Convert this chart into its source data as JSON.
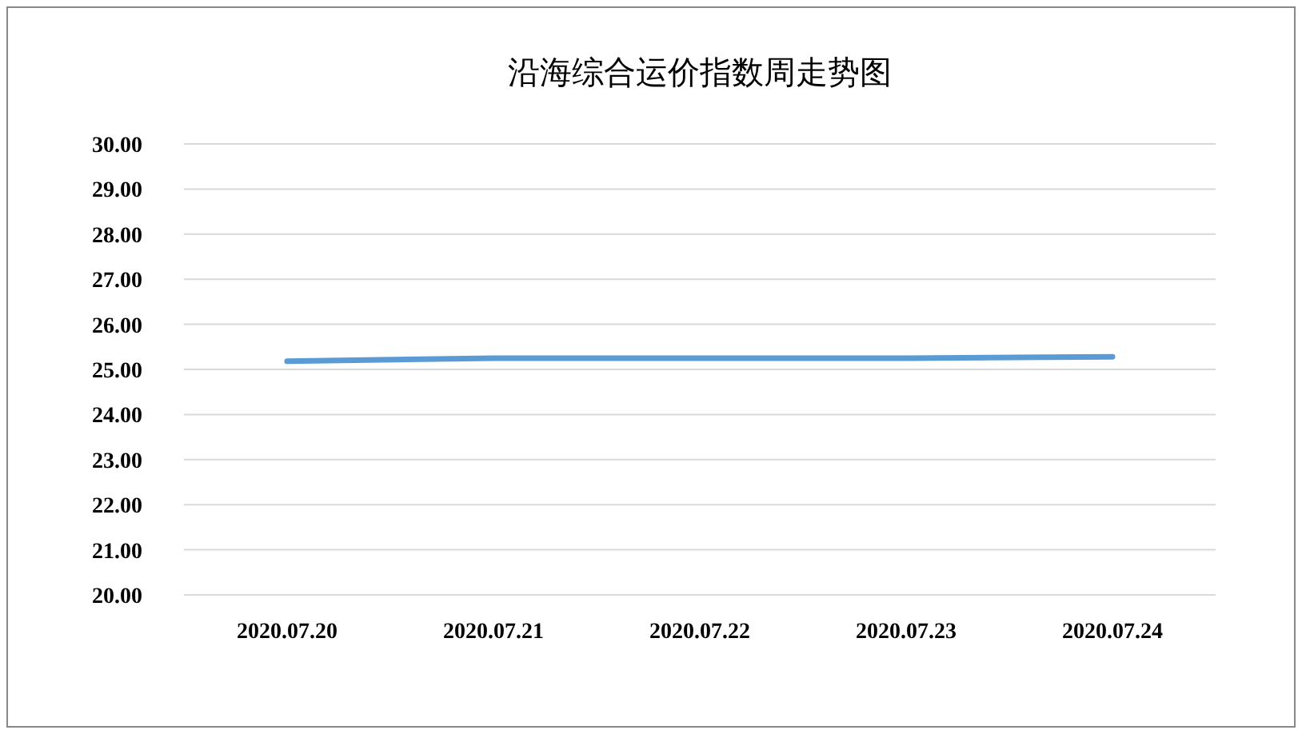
{
  "chart_data": {
    "type": "line",
    "title": "沿海综合运价指数周走势图",
    "categories": [
      "2020.07.20",
      "2020.07.21",
      "2020.07.22",
      "2020.07.23",
      "2020.07.24"
    ],
    "series": [
      {
        "color": "#5b9bd5",
        "values": [
          25.18,
          25.25,
          25.25,
          25.25,
          25.28
        ]
      }
    ],
    "ylim": [
      20,
      30
    ],
    "yticks": [
      {
        "value": 20,
        "label": "20.00"
      },
      {
        "value": 21,
        "label": "21.00"
      },
      {
        "value": 22,
        "label": "22.00"
      },
      {
        "value": 23,
        "label": "23.00"
      },
      {
        "value": 24,
        "label": "24.00"
      },
      {
        "value": 25,
        "label": "25.00"
      },
      {
        "value": 26,
        "label": "26.00"
      },
      {
        "value": 27,
        "label": "27.00"
      },
      {
        "value": 28,
        "label": "28.00"
      },
      {
        "value": 29,
        "label": "29.00"
      },
      {
        "value": 30,
        "label": "30.00"
      }
    ],
    "grid": "y"
  }
}
